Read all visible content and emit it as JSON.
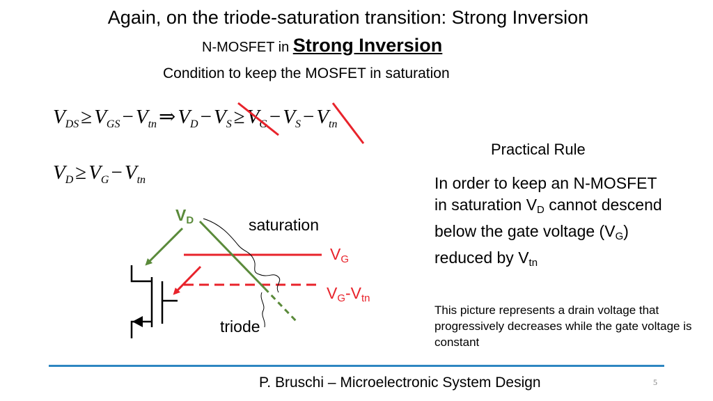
{
  "title": "Again, on the triode-saturation transition: Strong Inversion",
  "subtitle": {
    "prefix": "N-MOSFET in ",
    "strong": "Strong Inversion"
  },
  "condition": "Condition to keep the MOSFET in saturation",
  "eq1": {
    "t1": "V",
    "t1_sub": "DS",
    "op1": "≥",
    "t2": "V",
    "t2_sub": "GS",
    "op2": "−",
    "t3": "V",
    "t3_sub": "tn",
    "op3": "⇒",
    "t4": "V",
    "t4_sub": "D",
    "op4": "−",
    "t5": "V",
    "t5_sub": "S",
    "op5": "≥",
    "t6": "V",
    "t6_sub": "G",
    "op6": "−",
    "t7": "V",
    "t7_sub": "S",
    "op7": "−",
    "t8": "V",
    "t8_sub": "tn"
  },
  "eq2": {
    "t1": "V",
    "t1_sub": "D",
    "op1": "≥",
    "t2": "V",
    "t2_sub": "G",
    "op2": "−",
    "t3": "V",
    "t3_sub": "tn"
  },
  "practical_rule": {
    "title": "Practical Rule",
    "line1": "In order to keep an N-MOSFET",
    "line2_pre": "in saturation V",
    "line2_sub": "D",
    "line2_post": " cannot descend",
    "line3_pre": "below the gate voltage (V",
    "line3_sub": "G",
    "line3_post": ")",
    "line4_pre": "reduced by V",
    "line4_sub": "tn"
  },
  "note": "This picture represents a drain voltage that progressively decreases while the gate voltage is constant",
  "diagram": {
    "vd_label": "V",
    "vd_sub": "D",
    "saturation": "saturation",
    "vg_label": "V",
    "vg_sub": "G",
    "vgvtn_label": "V",
    "vgvtn_sub": "G",
    "vgvtn_dash": "-V",
    "vgvtn_sub2": "tn",
    "triode": "triode"
  },
  "colors": {
    "red": "#e8232b",
    "green": "#5a8a3a",
    "footer_line": "#2e86c1"
  },
  "footer": "P. Bruschi – Microelectronic System Design",
  "page_number": "5"
}
